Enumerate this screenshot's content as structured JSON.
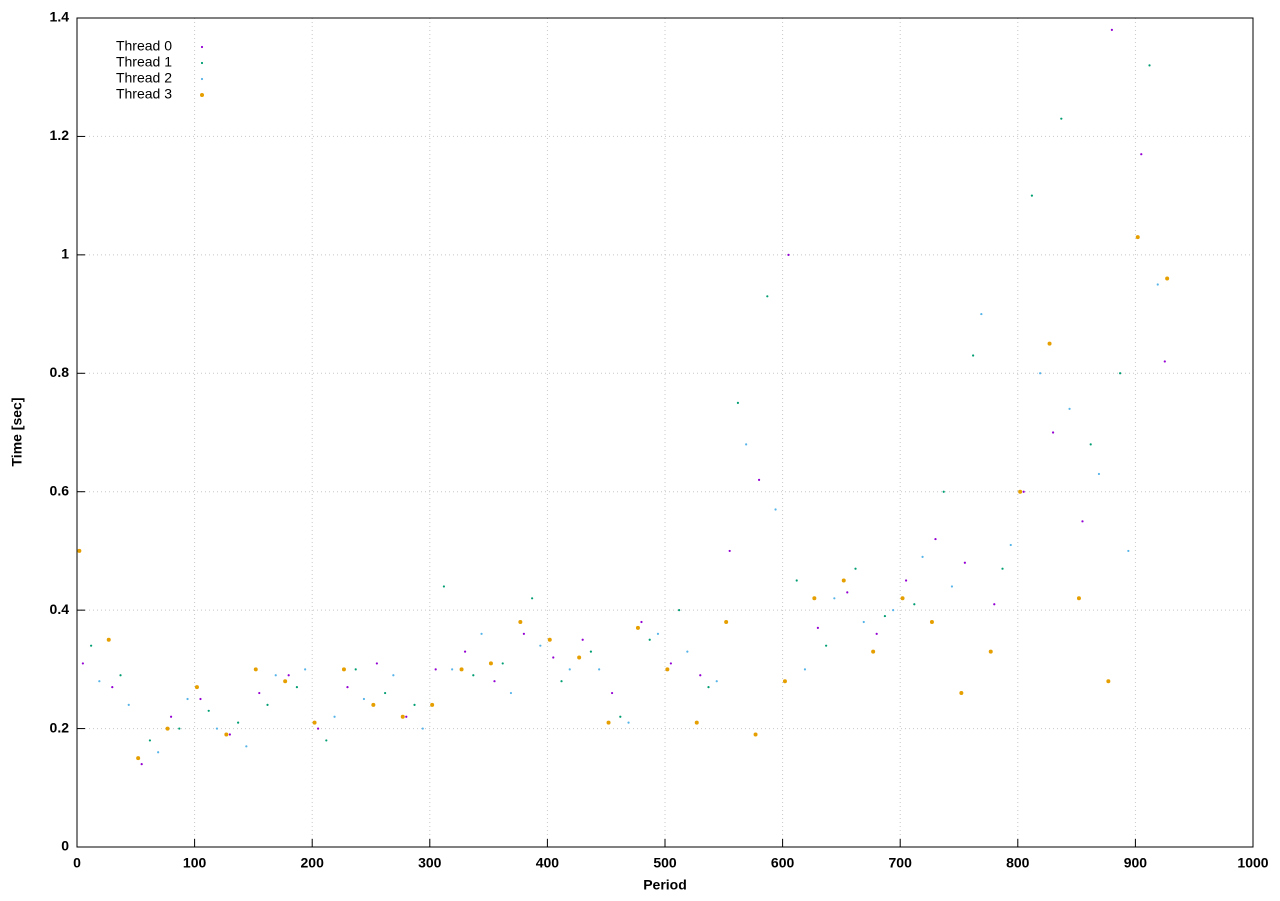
{
  "chart_data": {
    "type": "scatter",
    "x_label": "Period",
    "y_label": "Time [sec]",
    "xlim": [
      0,
      1000
    ],
    "xticks": [
      0,
      100,
      200,
      300,
      400,
      500,
      600,
      700,
      800,
      900,
      1000
    ],
    "ylim": [
      0,
      1.4
    ],
    "yticks": [
      0,
      0.2,
      0.4,
      0.6,
      0.8,
      1,
      1.2,
      1.4
    ],
    "grid": true,
    "legend": "top-left",
    "series": [
      {
        "name": "Thread 0",
        "color": "#9400d3",
        "x": [
          5,
          30,
          55,
          80,
          105,
          130,
          155,
          180,
          205,
          230,
          255,
          280,
          305,
          330,
          355,
          380,
          405,
          430,
          455,
          480,
          505,
          530,
          555,
          580,
          605,
          630,
          655,
          680,
          705,
          730,
          755,
          780,
          805,
          830,
          855,
          880,
          905,
          925
        ],
        "values": [
          0.31,
          0.27,
          0.14,
          0.22,
          0.25,
          0.19,
          0.26,
          0.29,
          0.2,
          0.27,
          0.31,
          0.22,
          0.3,
          0.33,
          0.28,
          0.36,
          0.32,
          0.35,
          0.26,
          0.38,
          0.31,
          0.29,
          0.5,
          0.62,
          1.0,
          0.37,
          0.43,
          0.36,
          0.45,
          0.52,
          0.48,
          0.41,
          0.6,
          0.7,
          0.55,
          1.38,
          1.17,
          0.82
        ]
      },
      {
        "name": "Thread 1",
        "color": "#009e73",
        "x": [
          12,
          37,
          62,
          87,
          112,
          137,
          162,
          187,
          212,
          237,
          262,
          287,
          312,
          337,
          362,
          387,
          412,
          437,
          462,
          487,
          512,
          537,
          562,
          587,
          612,
          637,
          662,
          687,
          712,
          737,
          762,
          787,
          812,
          837,
          862,
          887,
          912
        ],
        "values": [
          0.34,
          0.29,
          0.18,
          0.2,
          0.23,
          0.21,
          0.24,
          0.27,
          0.18,
          0.3,
          0.26,
          0.24,
          0.44,
          0.29,
          0.31,
          0.42,
          0.28,
          0.33,
          0.22,
          0.35,
          0.4,
          0.27,
          0.75,
          0.93,
          0.45,
          0.34,
          0.47,
          0.39,
          0.41,
          0.6,
          0.83,
          0.47,
          1.1,
          1.23,
          0.68,
          0.8,
          1.32
        ]
      },
      {
        "name": "Thread 2",
        "color": "#56b4e9",
        "x": [
          19,
          44,
          69,
          94,
          119,
          144,
          169,
          194,
          219,
          244,
          269,
          294,
          319,
          344,
          369,
          394,
          419,
          444,
          469,
          494,
          519,
          544,
          569,
          594,
          619,
          644,
          669,
          694,
          719,
          744,
          769,
          794,
          819,
          844,
          869,
          894,
          919
        ],
        "values": [
          0.28,
          0.24,
          0.16,
          0.25,
          0.2,
          0.17,
          0.29,
          0.3,
          0.22,
          0.25,
          0.29,
          0.2,
          0.3,
          0.36,
          0.26,
          0.34,
          0.3,
          0.3,
          0.21,
          0.36,
          0.33,
          0.28,
          0.68,
          0.57,
          0.3,
          0.42,
          0.38,
          0.4,
          0.49,
          0.44,
          0.9,
          0.51,
          0.8,
          0.74,
          0.63,
          0.5,
          0.95
        ]
      },
      {
        "name": "Thread 3",
        "color": "#e69f00",
        "x": [
          2,
          27,
          52,
          77,
          102,
          127,
          152,
          177,
          202,
          227,
          252,
          277,
          302,
          327,
          352,
          377,
          402,
          427,
          452,
          477,
          502,
          527,
          552,
          577,
          602,
          627,
          652,
          677,
          702,
          727,
          752,
          777,
          802,
          827,
          852,
          877,
          902,
          927
        ],
        "values": [
          0.5,
          0.35,
          0.15,
          0.2,
          0.27,
          0.19,
          0.3,
          0.28,
          0.21,
          0.3,
          0.24,
          0.22,
          0.24,
          0.3,
          0.31,
          0.38,
          0.35,
          0.32,
          0.21,
          0.37,
          0.3,
          0.21,
          0.38,
          0.19,
          0.28,
          0.42,
          0.45,
          0.33,
          0.42,
          0.38,
          0.26,
          0.33,
          0.6,
          0.85,
          0.42,
          0.28,
          1.03,
          0.96
        ]
      }
    ]
  }
}
